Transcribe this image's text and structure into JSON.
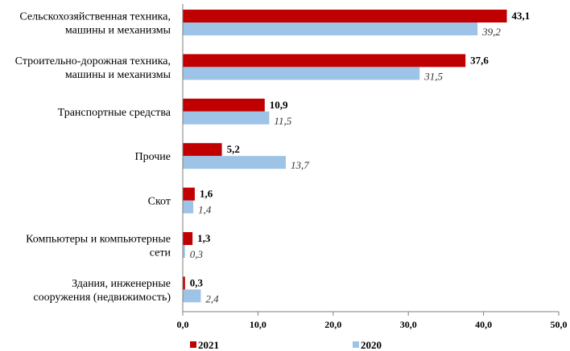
{
  "chart_data": {
    "type": "bar",
    "orientation": "horizontal",
    "categories": [
      [
        "Сельскохозяйственная техника,",
        "машины и механизмы"
      ],
      [
        "Строительно-дорожная техника,",
        "машины и механизмы"
      ],
      [
        "Транспортные средства"
      ],
      [
        "Прочие"
      ],
      [
        "Скот"
      ],
      [
        "Компьютеры и компьютерные",
        "сети"
      ],
      [
        "Здания, инженерные",
        "сооружения (недвижимость)"
      ]
    ],
    "series": [
      {
        "name": "2021",
        "color": "#c00000",
        "values": [
          43.1,
          37.6,
          10.9,
          5.2,
          1.6,
          1.3,
          0.3
        ],
        "labels": [
          "43,1",
          "37,6",
          "10,9",
          "5,2",
          "1,6",
          "1,3",
          "0,3"
        ]
      },
      {
        "name": "2020",
        "color": "#9dc3e6",
        "values": [
          39.2,
          31.5,
          11.5,
          13.7,
          1.4,
          0.3,
          2.4
        ],
        "labels": [
          "39,2",
          "31,5",
          "11,5",
          "13,7",
          "1,4",
          "0,3",
          "2,4"
        ]
      }
    ],
    "xlim": [
      0,
      50
    ],
    "xticks": [
      0,
      10,
      20,
      30,
      40,
      50
    ],
    "xtick_labels": [
      "0,0",
      "10,0",
      "20,0",
      "30,0",
      "40,0",
      "50,0"
    ],
    "grid": false,
    "legend_position": "bottom"
  }
}
